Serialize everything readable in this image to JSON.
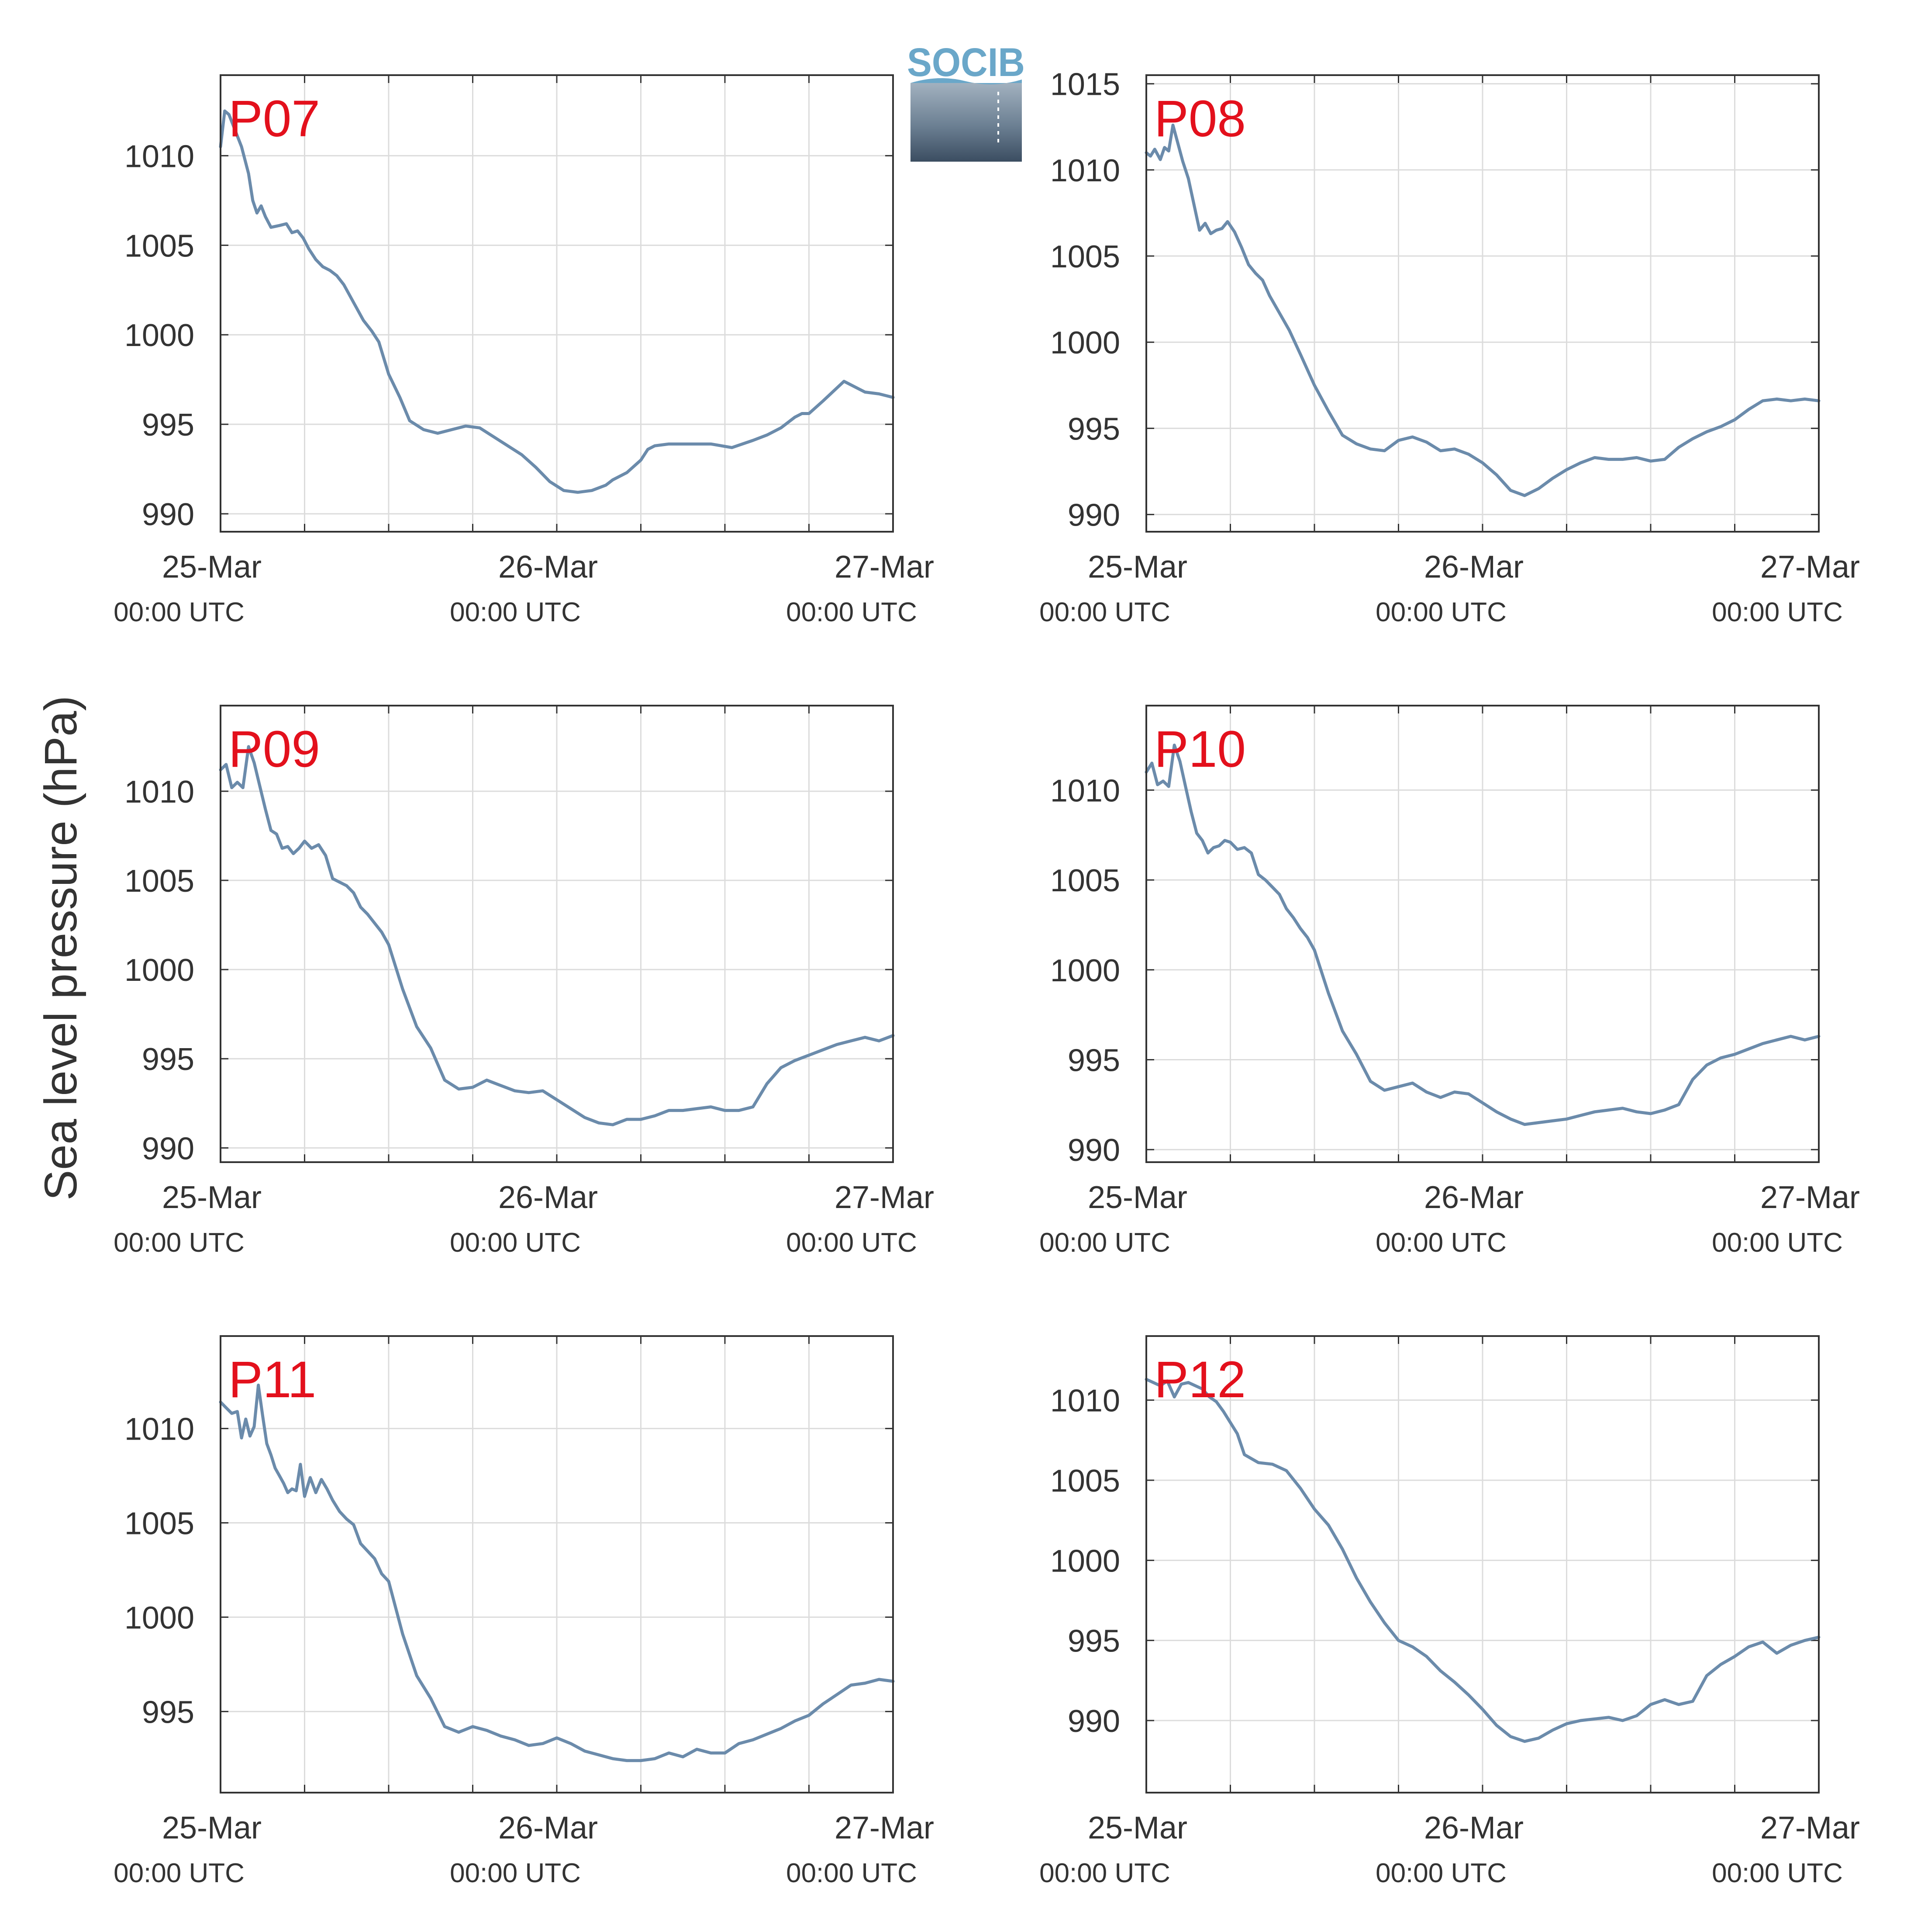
{
  "figure": {
    "ylabel": "Sea level pressure (hPa)",
    "logo_text": "SOCIB",
    "line_color": "#6b8bab",
    "title_color": "#e3101c",
    "axis_color": "#333333",
    "grid_color": "#dcdcdc"
  },
  "chart_data": [
    {
      "type": "line",
      "title": "P07",
      "xlim": [
        0,
        48
      ],
      "ylim": [
        989,
        1014.5
      ],
      "yticks": [
        990,
        995,
        1000,
        1005,
        1010
      ],
      "xticks": [
        {
          "label": "25-Mar",
          "sublabel": "00:00 UTC"
        },
        {
          "label": "26-Mar",
          "sublabel": "00:00 UTC"
        },
        {
          "label": "27-Mar",
          "sublabel": "00:00 UTC"
        }
      ],
      "x": [
        0,
        0.3,
        0.6,
        1,
        1.5,
        2,
        2.3,
        2.6,
        2.9,
        3.2,
        3.6,
        4.2,
        4.7,
        5.1,
        5.5,
        5.9,
        6.3,
        6.8,
        7.3,
        7.8,
        8.3,
        8.8,
        9.5,
        10.2,
        10.8,
        11.3,
        12,
        12.8,
        13.5,
        14.5,
        15.5,
        16.5,
        17.5,
        18.5,
        19.5,
        20.5,
        21.5,
        22.5,
        23.5,
        24.5,
        25.5,
        26.5,
        27.5,
        28,
        29,
        30,
        30.5,
        31,
        32,
        33.5,
        35,
        36.5,
        38,
        39,
        40,
        41,
        41.5,
        42,
        43,
        44.5,
        46,
        47,
        48
      ],
      "y": [
        1010.5,
        1012.5,
        1012.3,
        1011.5,
        1010.5,
        1009,
        1007.5,
        1006.8,
        1007.2,
        1006.6,
        1006,
        1006.1,
        1006.2,
        1005.7,
        1005.8,
        1005.4,
        1004.8,
        1004.2,
        1003.8,
        1003.6,
        1003.3,
        1002.8,
        1001.8,
        1000.8,
        1000.2,
        999.6,
        997.8,
        996.5,
        995.2,
        994.7,
        994.5,
        994.7,
        994.9,
        994.8,
        994.3,
        993.8,
        993.3,
        992.6,
        991.8,
        991.3,
        991.2,
        991.3,
        991.6,
        991.9,
        992.3,
        993,
        993.6,
        993.8,
        993.9,
        993.9,
        993.9,
        993.7,
        994.1,
        994.4,
        994.8,
        995.4,
        995.6,
        995.6,
        996.3,
        997.4,
        996.8,
        996.7,
        996.5
      ]
    },
    {
      "type": "line",
      "title": "P08",
      "xlim": [
        0,
        48
      ],
      "ylim": [
        989,
        1015.5
      ],
      "yticks": [
        990,
        995,
        1000,
        1005,
        1010,
        1015
      ],
      "xticks": [
        {
          "label": "25-Mar",
          "sublabel": "00:00 UTC"
        },
        {
          "label": "26-Mar",
          "sublabel": "00:00 UTC"
        },
        {
          "label": "27-Mar",
          "sublabel": "00:00 UTC"
        }
      ],
      "x": [
        0,
        0.3,
        0.6,
        1,
        1.3,
        1.6,
        1.9,
        2.2,
        2.6,
        3,
        3.4,
        3.8,
        4.2,
        4.6,
        5,
        5.4,
        5.8,
        6.3,
        6.8,
        7.3,
        7.8,
        8.3,
        8.8,
        9.5,
        10.2,
        11,
        12,
        13,
        14,
        15,
        16,
        17,
        18,
        19,
        20,
        21,
        22,
        23,
        24,
        25,
        26,
        27,
        28,
        29,
        30,
        31,
        32,
        33,
        34,
        35,
        36,
        37,
        38,
        39,
        40,
        41,
        42,
        43,
        44,
        45,
        46,
        47,
        48
      ],
      "y": [
        1011,
        1010.8,
        1011.2,
        1010.6,
        1011.3,
        1011.1,
        1012.6,
        1011.7,
        1010.5,
        1009.5,
        1008,
        1006.5,
        1006.9,
        1006.3,
        1006.5,
        1006.6,
        1007,
        1006.4,
        1005.5,
        1004.5,
        1004,
        1003.6,
        1002.7,
        1001.7,
        1000.7,
        999.3,
        997.5,
        996,
        994.6,
        994.1,
        993.8,
        993.7,
        994.3,
        994.5,
        994.2,
        993.7,
        993.8,
        993.5,
        993,
        992.3,
        991.4,
        991.1,
        991.5,
        992.1,
        992.6,
        993,
        993.3,
        993.2,
        993.2,
        993.3,
        993.1,
        993.2,
        993.9,
        994.4,
        994.8,
        995.1,
        995.5,
        996.1,
        996.6,
        996.7,
        996.6,
        996.7,
        996.6
      ]
    },
    {
      "type": "line",
      "title": "P09",
      "xlim": [
        0,
        48
      ],
      "ylim": [
        989.2,
        1014.8
      ],
      "yticks": [
        990,
        995,
        1000,
        1005,
        1010
      ],
      "xticks": [
        {
          "label": "25-Mar",
          "sublabel": "00:00 UTC"
        },
        {
          "label": "26-Mar",
          "sublabel": "00:00 UTC"
        },
        {
          "label": "27-Mar",
          "sublabel": "00:00 UTC"
        }
      ],
      "x": [
        0,
        0.4,
        0.8,
        1.2,
        1.6,
        2,
        2.4,
        2.8,
        3.2,
        3.6,
        4,
        4.4,
        4.8,
        5.2,
        5.6,
        6,
        6.5,
        7,
        7.5,
        8,
        8.5,
        9,
        9.5,
        10,
        10.5,
        11,
        11.5,
        12,
        13,
        14,
        15,
        16,
        17,
        18,
        19,
        20,
        21,
        22,
        23,
        24,
        25,
        26,
        27,
        28,
        29,
        30,
        31,
        32,
        33,
        34,
        35,
        36,
        37,
        38,
        39,
        40,
        41,
        42,
        43,
        44,
        45,
        46,
        47,
        48
      ],
      "y": [
        1011.2,
        1011.5,
        1010.2,
        1010.5,
        1010.2,
        1012.5,
        1011.6,
        1010.3,
        1009,
        1007.8,
        1007.6,
        1006.8,
        1006.9,
        1006.5,
        1006.8,
        1007.2,
        1006.8,
        1007,
        1006.4,
        1005.1,
        1004.9,
        1004.7,
        1004.3,
        1003.5,
        1003.1,
        1002.6,
        1002.1,
        1001.4,
        998.9,
        996.8,
        995.6,
        993.8,
        993.3,
        993.4,
        993.8,
        993.5,
        993.2,
        993.1,
        993.2,
        992.7,
        992.2,
        991.7,
        991.4,
        991.3,
        991.6,
        991.6,
        991.8,
        992.1,
        992.1,
        992.2,
        992.3,
        992.1,
        992.1,
        992.3,
        993.6,
        994.5,
        994.9,
        995.2,
        995.5,
        995.8,
        996.0,
        996.2,
        996.0,
        996.3
      ]
    },
    {
      "type": "line",
      "title": "P10",
      "xlim": [
        0,
        48
      ],
      "ylim": [
        989.3,
        1014.7
      ],
      "yticks": [
        990,
        995,
        1000,
        1005,
        1010
      ],
      "xticks": [
        {
          "label": "25-Mar",
          "sublabel": "00:00 UTC"
        },
        {
          "label": "26-Mar",
          "sublabel": "00:00 UTC"
        },
        {
          "label": "27-Mar",
          "sublabel": "00:00 UTC"
        }
      ],
      "x": [
        0,
        0.4,
        0.8,
        1.2,
        1.6,
        2,
        2.4,
        2.8,
        3.2,
        3.6,
        4,
        4.4,
        4.8,
        5.2,
        5.6,
        6,
        6.5,
        7,
        7.5,
        8,
        8.5,
        9,
        9.5,
        10,
        10.5,
        11,
        11.5,
        12,
        13,
        14,
        15,
        16,
        17,
        18,
        19,
        20,
        21,
        22,
        23,
        24,
        25,
        26,
        27,
        28,
        29,
        30,
        31,
        32,
        33,
        34,
        35,
        36,
        37,
        38,
        39,
        40,
        41,
        42,
        43,
        44,
        45,
        46,
        47,
        48
      ],
      "y": [
        1011,
        1011.5,
        1010.3,
        1010.5,
        1010.2,
        1012.5,
        1011.6,
        1010.2,
        1008.8,
        1007.6,
        1007.2,
        1006.5,
        1006.8,
        1006.9,
        1007.2,
        1007.1,
        1006.7,
        1006.8,
        1006.5,
        1005.3,
        1005,
        1004.6,
        1004.2,
        1003.4,
        1002.9,
        1002.3,
        1001.8,
        1001.1,
        998.7,
        996.6,
        995.3,
        993.8,
        993.3,
        993.5,
        993.7,
        993.2,
        992.9,
        993.2,
        993.1,
        992.6,
        992.1,
        991.7,
        991.4,
        991.5,
        991.6,
        991.7,
        991.9,
        992.1,
        992.2,
        992.3,
        992.1,
        992,
        992.2,
        992.5,
        993.9,
        994.7,
        995.1,
        995.3,
        995.6,
        995.9,
        996.1,
        996.3,
        996.1,
        996.3
      ]
    },
    {
      "type": "line",
      "title": "P11",
      "xlim": [
        0,
        48
      ],
      "ylim": [
        990.7,
        1014.9
      ],
      "yticks": [
        995,
        1000,
        1005,
        1010
      ],
      "xticks": [
        {
          "label": "25-Mar",
          "sublabel": "00:00 UTC"
        },
        {
          "label": "26-Mar",
          "sublabel": "00:00 UTC"
        },
        {
          "label": "27-Mar",
          "sublabel": "00:00 UTC"
        }
      ],
      "x": [
        0,
        0.4,
        0.8,
        1.2,
        1.5,
        1.8,
        2.1,
        2.4,
        2.7,
        3,
        3.3,
        3.6,
        3.9,
        4.2,
        4.5,
        4.8,
        5.1,
        5.4,
        5.7,
        6,
        6.4,
        6.8,
        7.2,
        7.6,
        8,
        8.5,
        9,
        9.5,
        10,
        10.5,
        11,
        11.5,
        12,
        13,
        14,
        15,
        16,
        17,
        18,
        19,
        20,
        21,
        22,
        23,
        24,
        25,
        26,
        27,
        28,
        29,
        30,
        31,
        32,
        33,
        34,
        35,
        36,
        37,
        38,
        39,
        40,
        41,
        42,
        43,
        44,
        45,
        46,
        47,
        48
      ],
      "y": [
        1011.4,
        1011.1,
        1010.8,
        1010.9,
        1009.5,
        1010.5,
        1009.6,
        1010.1,
        1012.3,
        1010.7,
        1009.2,
        1008.6,
        1007.9,
        1007.5,
        1007.1,
        1006.6,
        1006.8,
        1006.7,
        1008.1,
        1006.4,
        1007.4,
        1006.6,
        1007.3,
        1006.8,
        1006.2,
        1005.6,
        1005.2,
        1004.9,
        1003.9,
        1003.5,
        1003.1,
        1002.3,
        1001.9,
        999.1,
        996.9,
        995.7,
        994.2,
        993.9,
        994.2,
        994.0,
        993.7,
        993.5,
        993.2,
        993.3,
        993.6,
        993.3,
        992.9,
        992.7,
        992.5,
        992.4,
        992.4,
        992.5,
        992.8,
        992.6,
        993,
        992.8,
        992.8,
        993.3,
        993.5,
        993.8,
        994.1,
        994.5,
        994.8,
        995.4,
        995.9,
        996.4,
        996.5,
        996.7,
        996.6
      ]
    },
    {
      "type": "line",
      "title": "P12",
      "xlim": [
        0,
        48
      ],
      "ylim": [
        985.5,
        1014
      ],
      "yticks": [
        990,
        995,
        1000,
        1005,
        1010
      ],
      "xticks": [
        {
          "label": "25-Mar",
          "sublabel": "00:00 UTC"
        },
        {
          "label": "26-Mar",
          "sublabel": "00:00 UTC"
        },
        {
          "label": "27-Mar",
          "sublabel": "00:00 UTC"
        }
      ],
      "x": [
        0,
        0.5,
        1,
        1.5,
        2,
        2.5,
        3,
        3.5,
        4,
        4.5,
        5,
        5.5,
        6,
        6.5,
        7,
        8,
        9,
        10,
        11,
        12,
        13,
        14,
        15,
        16,
        17,
        18,
        19,
        20,
        21,
        22,
        23,
        24,
        25,
        26,
        27,
        28,
        29,
        30,
        31,
        32,
        33,
        34,
        35,
        36,
        37,
        38,
        39,
        40,
        41,
        42,
        43,
        44,
        45,
        46,
        47,
        48
      ],
      "y": [
        1011.3,
        1011.1,
        1010.9,
        1011.2,
        1010.2,
        1011,
        1011.1,
        1010.9,
        1010.7,
        1010.2,
        1009.9,
        1009.3,
        1008.6,
        1007.9,
        1006.6,
        1006.1,
        1006,
        1005.6,
        1004.5,
        1003.2,
        1002.2,
        1000.7,
        998.9,
        997.4,
        996.1,
        995,
        994.6,
        994,
        993.1,
        992.4,
        991.6,
        990.7,
        989.7,
        989.0,
        988.7,
        988.9,
        989.4,
        989.8,
        990.0,
        990.1,
        990.2,
        990.0,
        990.3,
        991.0,
        991.3,
        991.0,
        991.2,
        992.8,
        993.5,
        994.0,
        994.6,
        994.9,
        994.2,
        994.7,
        995.0,
        995.2
      ]
    }
  ]
}
